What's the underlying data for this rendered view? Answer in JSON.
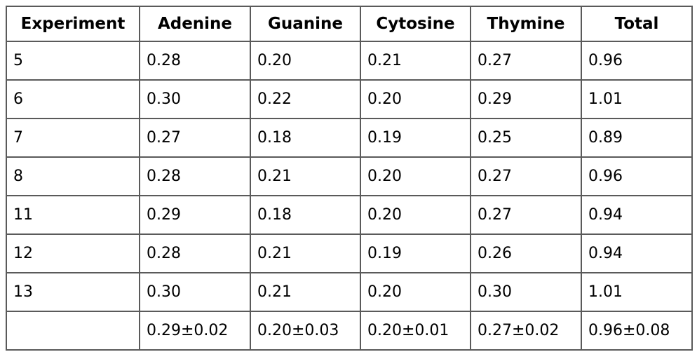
{
  "table": {
    "columns": [
      "Experiment",
      "Adenine",
      "Guanine",
      "Cytosine",
      "Thymine",
      "Total"
    ],
    "rows": [
      {
        "cells": [
          "5",
          "0.28",
          "0.20",
          "0.21",
          "0.27",
          "0.96"
        ]
      },
      {
        "cells": [
          "6",
          "0.30",
          "0.22",
          "0.20",
          "0.29",
          "1.01"
        ]
      },
      {
        "cells": [
          "7",
          "0.27",
          "0.18",
          "0.19",
          "0.25",
          "0.89"
        ]
      },
      {
        "cells": [
          "8",
          "0.28",
          "0.21",
          "0.20",
          "0.27",
          "0.96"
        ]
      },
      {
        "cells": [
          "11",
          "0.29",
          "0.18",
          "0.20",
          "0.27",
          "0.94"
        ]
      },
      {
        "cells": [
          "12",
          "0.28",
          "0.21",
          "0.19",
          "0.26",
          "0.94"
        ]
      },
      {
        "cells": [
          "13",
          "0.30",
          "0.21",
          "0.20",
          "0.30",
          "1.01"
        ]
      },
      {
        "cells": [
          "",
          "0.29±0.02",
          "0.20±0.03",
          "0.20±0.01",
          "0.27±0.02",
          "0.96±0.08"
        ]
      }
    ]
  },
  "colors": {
    "border": "#5a5a5a",
    "text": "#000000",
    "background": "#ffffff"
  },
  "chart_data": {
    "type": "table",
    "title": "",
    "columns": [
      "Experiment",
      "Adenine",
      "Guanine",
      "Cytosine",
      "Thymine",
      "Total"
    ],
    "rows": [
      [
        "5",
        0.28,
        0.2,
        0.21,
        0.27,
        0.96
      ],
      [
        "6",
        0.3,
        0.22,
        0.2,
        0.29,
        1.01
      ],
      [
        "7",
        0.27,
        0.18,
        0.19,
        0.25,
        0.89
      ],
      [
        "8",
        0.28,
        0.21,
        0.2,
        0.27,
        0.96
      ],
      [
        "11",
        0.29,
        0.18,
        0.2,
        0.27,
        0.94
      ],
      [
        "12",
        0.28,
        0.21,
        0.19,
        0.26,
        0.94
      ],
      [
        "13",
        0.3,
        0.21,
        0.2,
        0.3,
        1.01
      ]
    ],
    "summary_row": [
      "",
      "0.29±0.02",
      "0.20±0.03",
      "0.20±0.01",
      "0.27±0.02",
      "0.96±0.08"
    ]
  }
}
